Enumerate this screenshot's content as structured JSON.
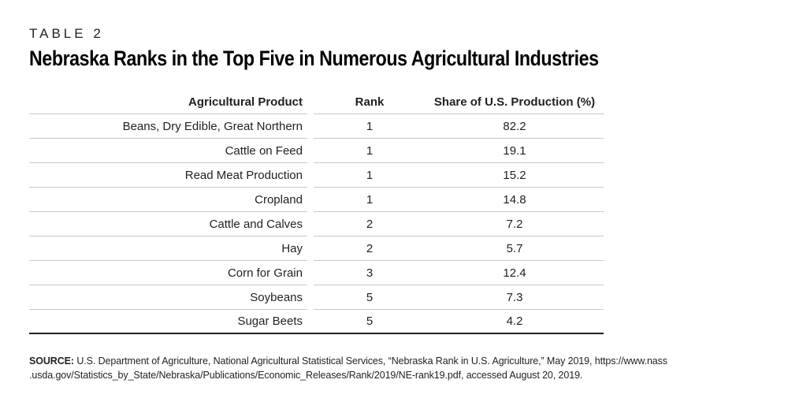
{
  "header": {
    "table_label": "TABLE 2",
    "title": "Nebraska Ranks in the Top Five in Numerous Agricultural Industries"
  },
  "table": {
    "columns": [
      "Agricultural Product",
      "Rank",
      "Share of U.S. Production (%)"
    ],
    "rows": [
      {
        "product": "Beans, Dry Edible, Great Northern",
        "rank": "1",
        "share": "82.2"
      },
      {
        "product": "Cattle on Feed",
        "rank": "1",
        "share": "19.1"
      },
      {
        "product": "Read Meat Production",
        "rank": "1",
        "share": "15.2"
      },
      {
        "product": "Cropland",
        "rank": "1",
        "share": "14.8"
      },
      {
        "product": "Cattle and Calves",
        "rank": "2",
        "share": "7.2"
      },
      {
        "product": "Hay",
        "rank": "2",
        "share": "5.7"
      },
      {
        "product": "Corn for Grain",
        "rank": "3",
        "share": "12.4"
      },
      {
        "product": "Soybeans",
        "rank": "5",
        "share": "7.3"
      },
      {
        "product": "Sugar Beets",
        "rank": "5",
        "share": "4.2"
      }
    ]
  },
  "source": {
    "label": "SOURCE:",
    "line1": "U.S. Department of Agriculture, National Agricultural Statistical Services, “Nebraska Rank in U.S. Agriculture,” May 2019, https://www.nass",
    "line2": ".usda.gov/Statistics_by_State/Nebraska/Publications/Economic_Releases/Rank/2019/NE-rank19.pdf, accessed August 20, 2019."
  },
  "colors": {
    "text": "#231f20",
    "title": "#000000",
    "row_divider": "#c8c8c8",
    "bottom_rule": "#231f20",
    "background": "#ffffff"
  },
  "chart_data": {
    "type": "table",
    "title": "Nebraska Ranks in the Top Five in Numerous Agricultural Industries",
    "table_label": "TABLE 2",
    "columns": [
      "Agricultural Product",
      "Rank",
      "Share of U.S. Production (%)"
    ],
    "rows": [
      [
        "Beans, Dry Edible, Great Northern",
        1,
        82.2
      ],
      [
        "Cattle on Feed",
        1,
        19.1
      ],
      [
        "Read Meat Production",
        1,
        15.2
      ],
      [
        "Cropland",
        1,
        14.8
      ],
      [
        "Cattle and Calves",
        2,
        7.2
      ],
      [
        "Hay",
        2,
        5.7
      ],
      [
        "Corn for Grain",
        3,
        12.4
      ],
      [
        "Soybeans",
        5,
        7.3
      ],
      [
        "Sugar Beets",
        5,
        4.2
      ]
    ],
    "source": "U.S. Department of Agriculture, National Agricultural Statistical Services, “Nebraska Rank in U.S. Agriculture,” May 2019, https://www.nass.usda.gov/Statistics_by_State/Nebraska/Publications/Economic_Releases/Rank/2019/NE-rank19.pdf, accessed August 20, 2019."
  }
}
